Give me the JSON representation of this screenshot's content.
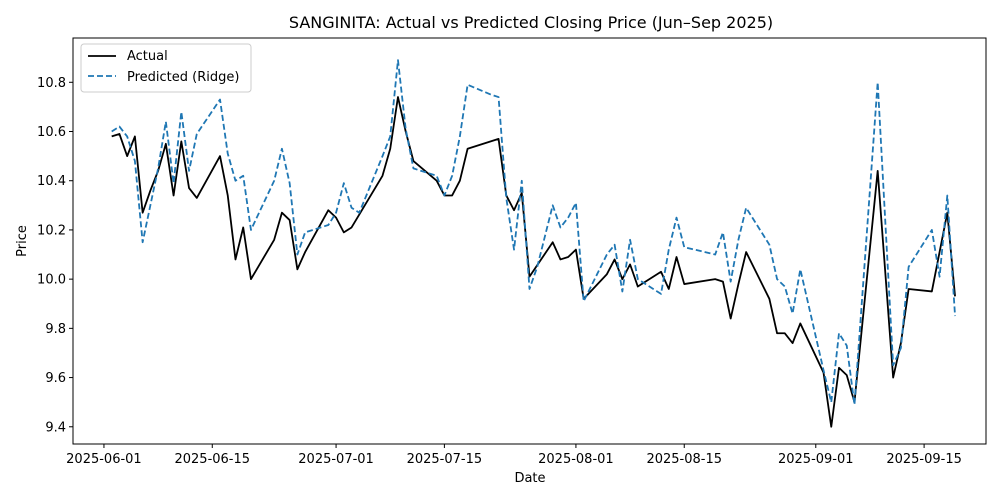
{
  "chart_data": {
    "type": "line",
    "title": "SANGINITA: Actual vs Predicted Closing Price (Jun–Sep 2025)",
    "xlabel": "Date",
    "ylabel": "Price",
    "xlim": [
      "2025-05-28",
      "2025-09-23"
    ],
    "ylim": [
      9.33,
      10.98
    ],
    "xticks": [
      "2025-06-01",
      "2025-06-15",
      "2025-07-01",
      "2025-07-15",
      "2025-08-01",
      "2025-08-15",
      "2025-09-01",
      "2025-09-15"
    ],
    "yticks": [
      9.4,
      9.6,
      9.8,
      10.0,
      10.2,
      10.4,
      10.6,
      10.8
    ],
    "ytick_labels": [
      "9.4",
      "9.6",
      "9.8",
      "10.0",
      "10.2",
      "10.4",
      "10.6",
      "10.8"
    ],
    "grid": false,
    "legend_position": "top-left",
    "series": [
      {
        "name": "Actual",
        "color": "#000000",
        "style": "solid",
        "points": [
          [
            "2025-06-02",
            10.58
          ],
          [
            "2025-06-03",
            10.59
          ],
          [
            "2025-06-04",
            10.5
          ],
          [
            "2025-06-05",
            10.58
          ],
          [
            "2025-06-06",
            10.27
          ],
          [
            "2025-06-07",
            10.36
          ],
          [
            "2025-06-08",
            10.44
          ],
          [
            "2025-06-09",
            10.55
          ],
          [
            "2025-06-10",
            10.34
          ],
          [
            "2025-06-11",
            10.56
          ],
          [
            "2025-06-12",
            10.37
          ],
          [
            "2025-06-13",
            10.33
          ],
          [
            "2025-06-16",
            10.5
          ],
          [
            "2025-06-17",
            10.34
          ],
          [
            "2025-06-18",
            10.08
          ],
          [
            "2025-06-19",
            10.21
          ],
          [
            "2025-06-20",
            10.0
          ],
          [
            "2025-06-23",
            10.16
          ],
          [
            "2025-06-24",
            10.27
          ],
          [
            "2025-06-25",
            10.24
          ],
          [
            "2025-06-26",
            10.04
          ],
          [
            "2025-06-27",
            10.11
          ],
          [
            "2025-06-30",
            10.28
          ],
          [
            "2025-07-01",
            10.25
          ],
          [
            "2025-07-02",
            10.19
          ],
          [
            "2025-07-03",
            10.21
          ],
          [
            "2025-07-07",
            10.42
          ],
          [
            "2025-07-08",
            10.53
          ],
          [
            "2025-07-09",
            10.74
          ],
          [
            "2025-07-10",
            10.6
          ],
          [
            "2025-07-11",
            10.48
          ],
          [
            "2025-07-14",
            10.4
          ],
          [
            "2025-07-15",
            10.34
          ],
          [
            "2025-07-16",
            10.34
          ],
          [
            "2025-07-17",
            10.4
          ],
          [
            "2025-07-18",
            10.53
          ],
          [
            "2025-07-22",
            10.57
          ],
          [
            "2025-07-23",
            10.34
          ],
          [
            "2025-07-24",
            10.28
          ],
          [
            "2025-07-25",
            10.35
          ],
          [
            "2025-07-26",
            10.01
          ],
          [
            "2025-07-29",
            10.15
          ],
          [
            "2025-07-30",
            10.08
          ],
          [
            "2025-07-31",
            10.09
          ],
          [
            "2025-08-01",
            10.12
          ],
          [
            "2025-08-02",
            9.92
          ],
          [
            "2025-08-05",
            10.02
          ],
          [
            "2025-08-06",
            10.08
          ],
          [
            "2025-08-07",
            10.0
          ],
          [
            "2025-08-08",
            10.06
          ],
          [
            "2025-08-09",
            9.97
          ],
          [
            "2025-08-12",
            10.03
          ],
          [
            "2025-08-13",
            9.96
          ],
          [
            "2025-08-14",
            10.09
          ],
          [
            "2025-08-15",
            9.98
          ],
          [
            "2025-08-19",
            10.0
          ],
          [
            "2025-08-20",
            9.99
          ],
          [
            "2025-08-21",
            9.84
          ],
          [
            "2025-08-22",
            9.98
          ],
          [
            "2025-08-23",
            10.11
          ],
          [
            "2025-08-26",
            9.92
          ],
          [
            "2025-08-27",
            9.78
          ],
          [
            "2025-08-28",
            9.78
          ],
          [
            "2025-08-29",
            9.74
          ],
          [
            "2025-08-30",
            9.82
          ],
          [
            "2025-09-02",
            9.62
          ],
          [
            "2025-09-03",
            9.4
          ],
          [
            "2025-09-04",
            9.64
          ],
          [
            "2025-09-05",
            9.61
          ],
          [
            "2025-09-06",
            9.5
          ],
          [
            "2025-09-09",
            10.44
          ],
          [
            "2025-09-11",
            9.6
          ],
          [
            "2025-09-12",
            9.74
          ],
          [
            "2025-09-13",
            9.96
          ],
          [
            "2025-09-16",
            9.95
          ],
          [
            "2025-09-18",
            10.27
          ],
          [
            "2025-09-19",
            9.93
          ]
        ]
      },
      {
        "name": "Predicted (Ridge)",
        "color": "#1f77b4",
        "style": "dashed",
        "points": [
          [
            "2025-06-02",
            10.6
          ],
          [
            "2025-06-03",
            10.62
          ],
          [
            "2025-06-04",
            10.58
          ],
          [
            "2025-06-05",
            10.48
          ],
          [
            "2025-06-06",
            10.15
          ],
          [
            "2025-06-07",
            10.3
          ],
          [
            "2025-06-08",
            10.45
          ],
          [
            "2025-06-09",
            10.64
          ],
          [
            "2025-06-10",
            10.39
          ],
          [
            "2025-06-11",
            10.68
          ],
          [
            "2025-06-12",
            10.44
          ],
          [
            "2025-06-13",
            10.59
          ],
          [
            "2025-06-16",
            10.73
          ],
          [
            "2025-06-17",
            10.51
          ],
          [
            "2025-06-18",
            10.4
          ],
          [
            "2025-06-19",
            10.42
          ],
          [
            "2025-06-20",
            10.2
          ],
          [
            "2025-06-23",
            10.4
          ],
          [
            "2025-06-24",
            10.53
          ],
          [
            "2025-06-25",
            10.39
          ],
          [
            "2025-06-26",
            10.1
          ],
          [
            "2025-06-27",
            10.19
          ],
          [
            "2025-06-30",
            10.22
          ],
          [
            "2025-07-01",
            10.27
          ],
          [
            "2025-07-02",
            10.39
          ],
          [
            "2025-07-03",
            10.29
          ],
          [
            "2025-07-04",
            10.27
          ],
          [
            "2025-07-07",
            10.5
          ],
          [
            "2025-07-08",
            10.58
          ],
          [
            "2025-07-09",
            10.89
          ],
          [
            "2025-07-10",
            10.61
          ],
          [
            "2025-07-11",
            10.45
          ],
          [
            "2025-07-14",
            10.42
          ],
          [
            "2025-07-15",
            10.34
          ],
          [
            "2025-07-16",
            10.42
          ],
          [
            "2025-07-17",
            10.58
          ],
          [
            "2025-07-18",
            10.79
          ],
          [
            "2025-07-21",
            10.75
          ],
          [
            "2025-07-22",
            10.74
          ],
          [
            "2025-07-23",
            10.33
          ],
          [
            "2025-07-24",
            10.12
          ],
          [
            "2025-07-25",
            10.4
          ],
          [
            "2025-07-26",
            9.96
          ],
          [
            "2025-07-27",
            10.05
          ],
          [
            "2025-07-29",
            10.3
          ],
          [
            "2025-07-30",
            10.21
          ],
          [
            "2025-07-31",
            10.25
          ],
          [
            "2025-08-01",
            10.31
          ],
          [
            "2025-08-02",
            9.91
          ],
          [
            "2025-08-05",
            10.1
          ],
          [
            "2025-08-06",
            10.14
          ],
          [
            "2025-08-07",
            9.95
          ],
          [
            "2025-08-08",
            10.16
          ],
          [
            "2025-08-09",
            10.0
          ],
          [
            "2025-08-12",
            9.94
          ],
          [
            "2025-08-13",
            10.12
          ],
          [
            "2025-08-14",
            10.25
          ],
          [
            "2025-08-15",
            10.13
          ],
          [
            "2025-08-19",
            10.1
          ],
          [
            "2025-08-20",
            10.19
          ],
          [
            "2025-08-21",
            9.99
          ],
          [
            "2025-08-22",
            10.16
          ],
          [
            "2025-08-23",
            10.29
          ],
          [
            "2025-08-26",
            10.14
          ],
          [
            "2025-08-27",
            10.0
          ],
          [
            "2025-08-28",
            9.97
          ],
          [
            "2025-08-29",
            9.86
          ],
          [
            "2025-08-30",
            10.04
          ],
          [
            "2025-09-02",
            9.63
          ],
          [
            "2025-09-03",
            9.5
          ],
          [
            "2025-09-04",
            9.78
          ],
          [
            "2025-09-05",
            9.73
          ],
          [
            "2025-09-06",
            9.49
          ],
          [
            "2025-09-09",
            10.8
          ],
          [
            "2025-09-11",
            9.65
          ],
          [
            "2025-09-12",
            9.72
          ],
          [
            "2025-09-13",
            10.05
          ],
          [
            "2025-09-16",
            10.2
          ],
          [
            "2025-09-17",
            10.01
          ],
          [
            "2025-09-18",
            10.34
          ],
          [
            "2025-09-19",
            9.85
          ]
        ]
      }
    ]
  }
}
